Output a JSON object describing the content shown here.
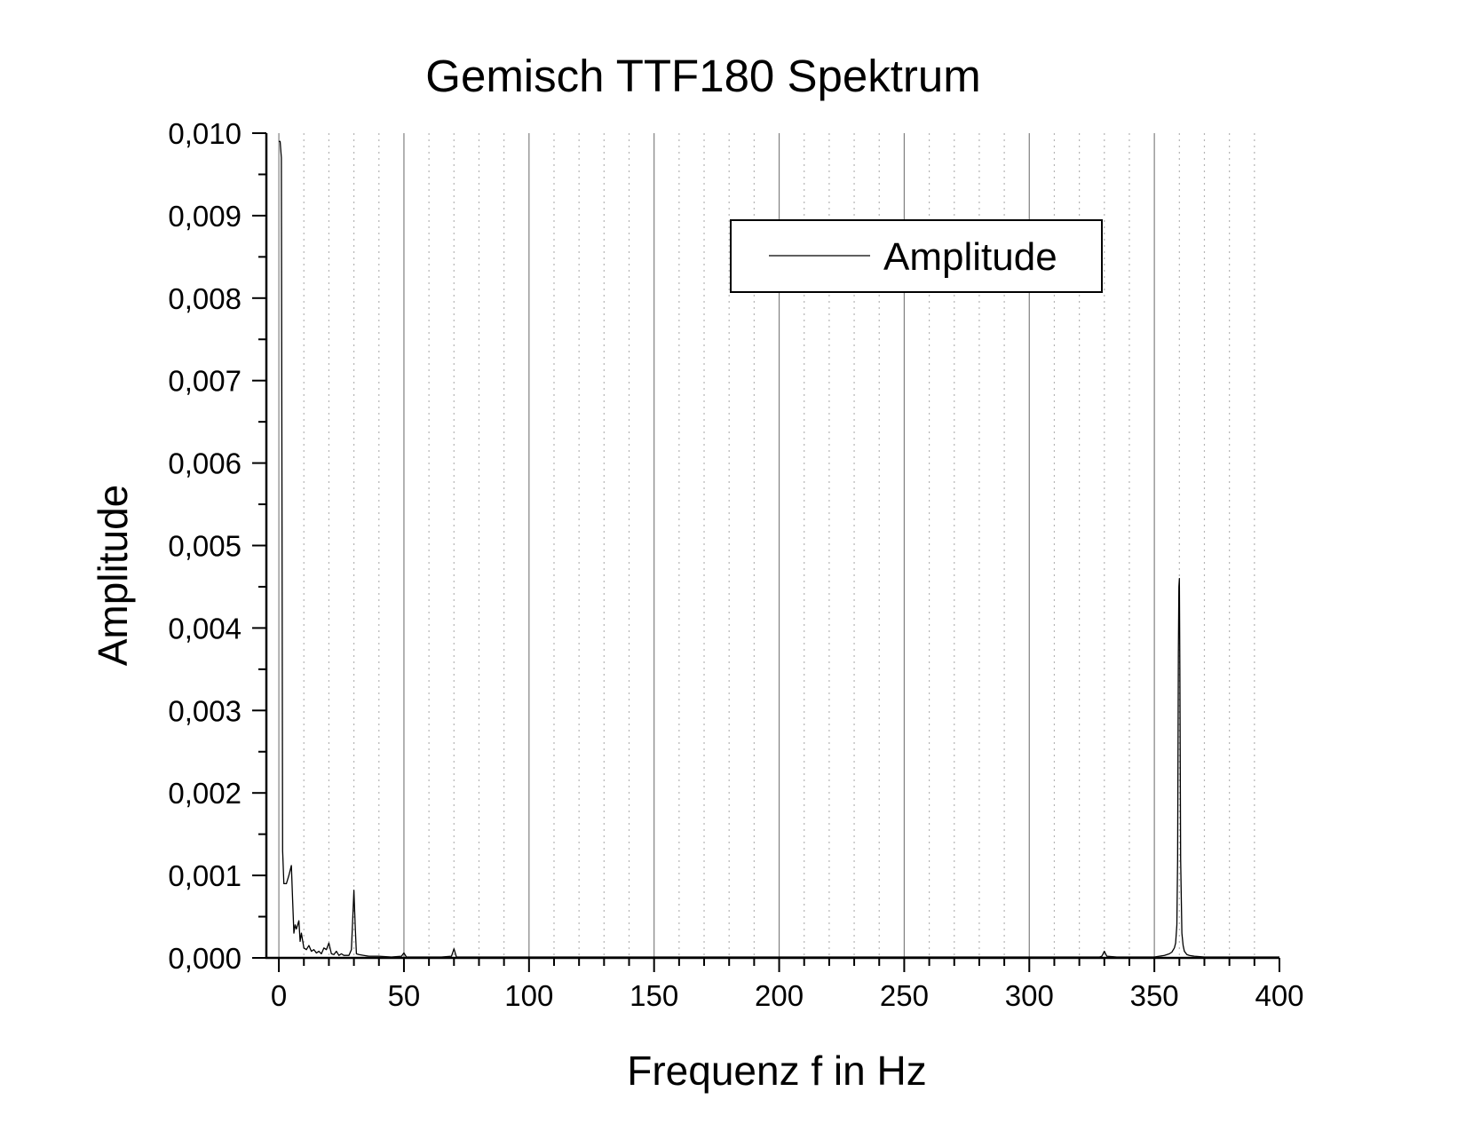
{
  "chart_data": {
    "type": "line",
    "title": "Gemisch TTF180 Spektrum",
    "xlabel": "Frequenz f in Hz",
    "ylabel": "Amplitude",
    "xlim": [
      -5,
      400
    ],
    "ylim": [
      0,
      0.01
    ],
    "x_ticks": [
      0,
      50,
      100,
      150,
      200,
      250,
      300,
      350,
      400
    ],
    "x_tick_labels": [
      "0",
      "50",
      "100",
      "150",
      "200",
      "250",
      "300",
      "350",
      "400"
    ],
    "y_ticks": [
      0,
      0.001,
      0.002,
      0.003,
      0.004,
      0.005,
      0.006,
      0.007,
      0.008,
      0.009,
      0.01
    ],
    "y_tick_labels": [
      "0,000",
      "0,001",
      "0,002",
      "0,003",
      "0,004",
      "0,005",
      "0,006",
      "0,007",
      "0,008",
      "0,009",
      "0,010"
    ],
    "grid": {
      "major_x": true,
      "minor_x": true,
      "minor_x_step": 10,
      "major_x_color": "#808080",
      "minor_x_color": "#b4b4b4"
    },
    "legend": {
      "position": "top-right",
      "entries": [
        "Amplitude"
      ]
    },
    "series": [
      {
        "name": "Amplitude",
        "color": "#000000",
        "x": [
          0,
          0.5,
          1,
          1.5,
          2,
          3,
          4,
          5,
          5.5,
          6,
          6.5,
          7,
          8,
          8.5,
          9,
          10,
          11,
          12,
          13,
          14,
          15,
          16,
          17,
          18,
          19,
          20,
          21,
          22,
          23,
          24,
          25,
          26,
          27,
          28,
          29,
          29.5,
          30,
          30.5,
          31,
          32,
          34,
          36,
          40,
          45,
          49,
          50,
          51,
          55,
          60,
          65,
          69,
          70,
          71,
          75,
          80,
          90,
          100,
          120,
          150,
          200,
          250,
          300,
          320,
          328,
          329,
          330,
          331,
          335,
          340,
          345,
          350,
          352,
          354,
          356,
          357,
          358,
          358.5,
          359,
          359.3,
          359.6,
          359.8,
          360,
          360.2,
          360.5,
          361,
          361.5,
          362,
          363,
          364,
          366,
          370,
          380,
          400
        ],
        "y": [
          0.0099,
          0.0099,
          0.0097,
          0.0013,
          0.0009,
          0.0009,
          0.001,
          0.00112,
          0.0007,
          0.0003,
          0.0004,
          0.00035,
          0.00045,
          0.0002,
          0.0003,
          0.00012,
          0.0001,
          0.00015,
          8e-05,
          0.0001,
          6e-05,
          8e-05,
          5e-05,
          0.00012,
          0.0001,
          0.00018,
          5e-05,
          4e-05,
          8e-05,
          3e-05,
          5e-05,
          3e-05,
          3e-05,
          3e-05,
          0.0001,
          0.00045,
          0.00082,
          0.0004,
          5e-05,
          4e-05,
          3e-05,
          2e-05,
          2e-05,
          1e-05,
          2e-05,
          6e-05,
          1e-05,
          1e-05,
          1e-05,
          1e-05,
          2e-05,
          0.00011,
          1e-05,
          1e-05,
          1e-05,
          1e-05,
          1e-05,
          1e-05,
          1e-05,
          1e-05,
          1e-05,
          1e-05,
          1e-05,
          1e-05,
          2e-05,
          8e-05,
          2e-05,
          1e-05,
          1e-05,
          1e-05,
          1e-05,
          2e-05,
          3e-05,
          5e-05,
          7e-05,
          0.00012,
          0.00018,
          0.0004,
          0.0012,
          0.0037,
          0.0045,
          0.0046,
          0.0035,
          0.0012,
          0.0003,
          0.00015,
          8e-05,
          4e-05,
          3e-05,
          2e-05,
          1e-05,
          1e-05,
          1e-05
        ]
      }
    ]
  }
}
